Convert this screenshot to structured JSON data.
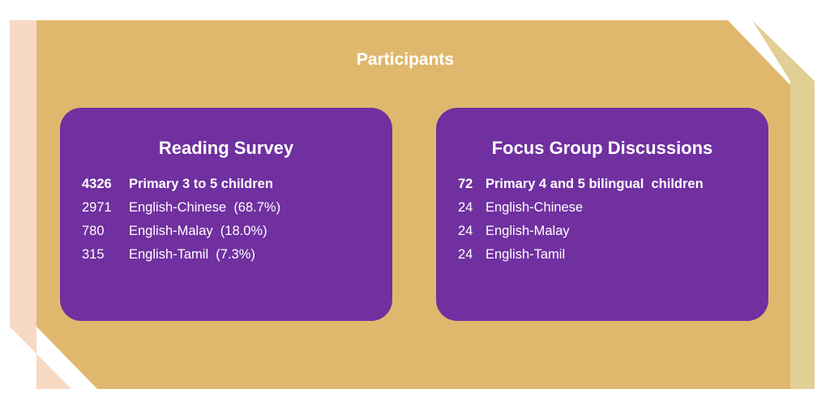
{
  "title": "Participants",
  "colors": {
    "panel": "#e0b86d",
    "left_strip": "#f8d9c4",
    "right_strip": "#e2cf94",
    "box": "#7030a0"
  },
  "boxes": [
    {
      "heading": "Reading Survey",
      "rows": [
        {
          "count": "4326",
          "label": "Primary 3 to 5 children",
          "bold": true
        },
        {
          "count": "2971",
          "label": "English-Chinese  (68.7%)"
        },
        {
          "count": "780",
          "label": "English-Malay  (18.0%)"
        },
        {
          "count": "315",
          "label": "English-Tamil  (7.3%)"
        }
      ]
    },
    {
      "heading": "Focus Group Discussions",
      "rows": [
        {
          "count": "72",
          "label": "Primary 4 and 5 bilingual  children",
          "bold": true
        },
        {
          "count": "24",
          "label": "English-Chinese"
        },
        {
          "count": "24",
          "label": "English-Malay"
        },
        {
          "count": "24",
          "label": "English-Tamil"
        }
      ]
    }
  ]
}
